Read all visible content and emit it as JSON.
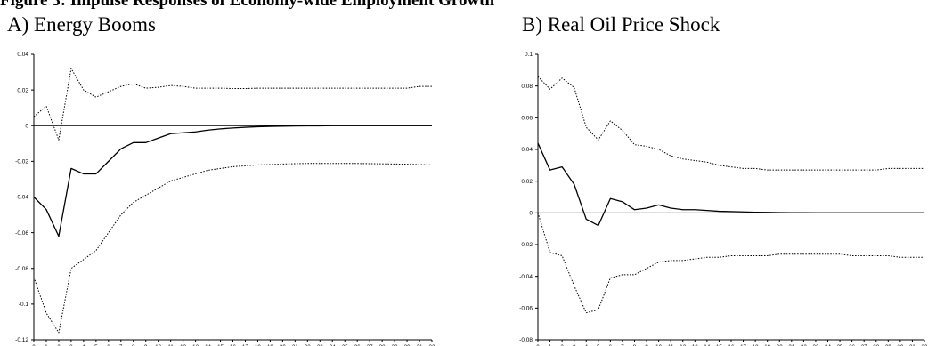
{
  "figure": {
    "banner": "Figure 3: Impulse Responses of Economy-wide Employment Growth"
  },
  "panels": [
    {
      "label": "A) Energy Booms"
    },
    {
      "label": "B) Real Oil Price Shock"
    }
  ],
  "colors": {
    "line": "#000000",
    "band": "#000000",
    "background": "#ffffff"
  },
  "chart_data": [
    {
      "type": "line",
      "title": "A) Energy Booms",
      "x": [
        0,
        1,
        2,
        3,
        4,
        5,
        6,
        7,
        8,
        9,
        10,
        11,
        12,
        13,
        14,
        15,
        16,
        17,
        18,
        19,
        20,
        21,
        22,
        23,
        24,
        25,
        26,
        27,
        28,
        29,
        30,
        31,
        32
      ],
      "ylim": [
        -0.12,
        0.04
      ],
      "yticks": [
        0.04,
        0.02,
        0,
        -0.02,
        -0.04,
        -0.06,
        -0.08,
        -0.1,
        -0.12
      ],
      "ytick_labels": [
        "0.04",
        "0.02",
        "0",
        "-0.02",
        "-0.04",
        "-0.06",
        "-0.08",
        "-0.1",
        "-0.12"
      ],
      "zero_line": true,
      "grid": false,
      "series": [
        {
          "style": "solid",
          "values": [
            -0.04,
            -0.047,
            -0.062,
            -0.024,
            -0.027,
            -0.027,
            -0.02,
            -0.013,
            -0.0095,
            -0.0095,
            -0.007,
            -0.0045,
            -0.004,
            -0.0035,
            -0.0025,
            -0.0018,
            -0.0013,
            -0.0009,
            -0.0006,
            -0.0004,
            -0.0003,
            -0.0002,
            -0.0001,
            -0.0001,
            0,
            0,
            0,
            0,
            0,
            0,
            0,
            0,
            0
          ]
        },
        {
          "style": "dotted",
          "values": [
            0.005,
            0.011,
            -0.008,
            0.032,
            0.02,
            0.016,
            0.019,
            0.022,
            0.0235,
            0.021,
            0.0215,
            0.0225,
            0.022,
            0.021,
            0.021,
            0.021,
            0.0208,
            0.0208,
            0.021,
            0.021,
            0.021,
            0.021,
            0.021,
            0.021,
            0.021,
            0.021,
            0.021,
            0.021,
            0.021,
            0.021,
            0.021,
            0.022,
            0.022
          ]
        },
        {
          "style": "dotted",
          "values": [
            -0.085,
            -0.105,
            -0.116,
            -0.08,
            -0.075,
            -0.07,
            -0.06,
            -0.05,
            -0.043,
            -0.039,
            -0.035,
            -0.031,
            -0.029,
            -0.027,
            -0.025,
            -0.024,
            -0.023,
            -0.0225,
            -0.022,
            -0.0218,
            -0.0215,
            -0.0213,
            -0.0212,
            -0.0212,
            -0.0212,
            -0.0212,
            -0.0212,
            -0.0213,
            -0.0214,
            -0.0215,
            -0.0216,
            -0.0218,
            -0.022
          ]
        }
      ]
    },
    {
      "type": "line",
      "title": "B) Real Oil Price Shock",
      "x": [
        0,
        1,
        2,
        3,
        4,
        5,
        6,
        7,
        8,
        9,
        10,
        11,
        12,
        13,
        14,
        15,
        16,
        17,
        18,
        19,
        20,
        21,
        22,
        23,
        24,
        25,
        26,
        27,
        28,
        29,
        30,
        31,
        32
      ],
      "ylim": [
        -0.08,
        0.1
      ],
      "yticks": [
        0.1,
        0.08,
        0.06,
        0.04,
        0.02,
        0,
        -0.02,
        -0.04,
        -0.06,
        -0.08
      ],
      "ytick_labels": [
        "0.1",
        "0.08",
        "0.06",
        "0.04",
        "0.02",
        "0",
        "-0.02",
        "-0.04",
        "-0.06",
        "-0.08"
      ],
      "zero_line": true,
      "grid": false,
      "series": [
        {
          "style": "solid",
          "values": [
            0.044,
            0.027,
            0.029,
            0.018,
            -0.004,
            -0.008,
            0.009,
            0.007,
            0.002,
            0.003,
            0.005,
            0.003,
            0.002,
            0.002,
            0.0015,
            0.001,
            0.0008,
            0.0006,
            0.0004,
            0.0003,
            0.0002,
            0.0001,
            0.0001,
            0,
            0,
            0,
            0,
            0,
            0,
            0,
            0,
            0,
            0
          ]
        },
        {
          "style": "dotted",
          "values": [
            0.086,
            0.078,
            0.085,
            0.079,
            0.054,
            0.046,
            0.058,
            0.052,
            0.043,
            0.042,
            0.04,
            0.036,
            0.034,
            0.033,
            0.032,
            0.03,
            0.029,
            0.028,
            0.028,
            0.027,
            0.027,
            0.027,
            0.027,
            0.027,
            0.027,
            0.027,
            0.027,
            0.027,
            0.027,
            0.028,
            0.028,
            0.028,
            0.028
          ]
        },
        {
          "style": "dotted",
          "values": [
            0.0,
            -0.025,
            -0.027,
            -0.046,
            -0.063,
            -0.061,
            -0.041,
            -0.039,
            -0.039,
            -0.035,
            -0.031,
            -0.03,
            -0.03,
            -0.029,
            -0.028,
            -0.028,
            -0.027,
            -0.027,
            -0.027,
            -0.027,
            -0.026,
            -0.026,
            -0.026,
            -0.026,
            -0.026,
            -0.026,
            -0.027,
            -0.027,
            -0.027,
            -0.027,
            -0.028,
            -0.028,
            -0.028
          ]
        }
      ]
    }
  ]
}
